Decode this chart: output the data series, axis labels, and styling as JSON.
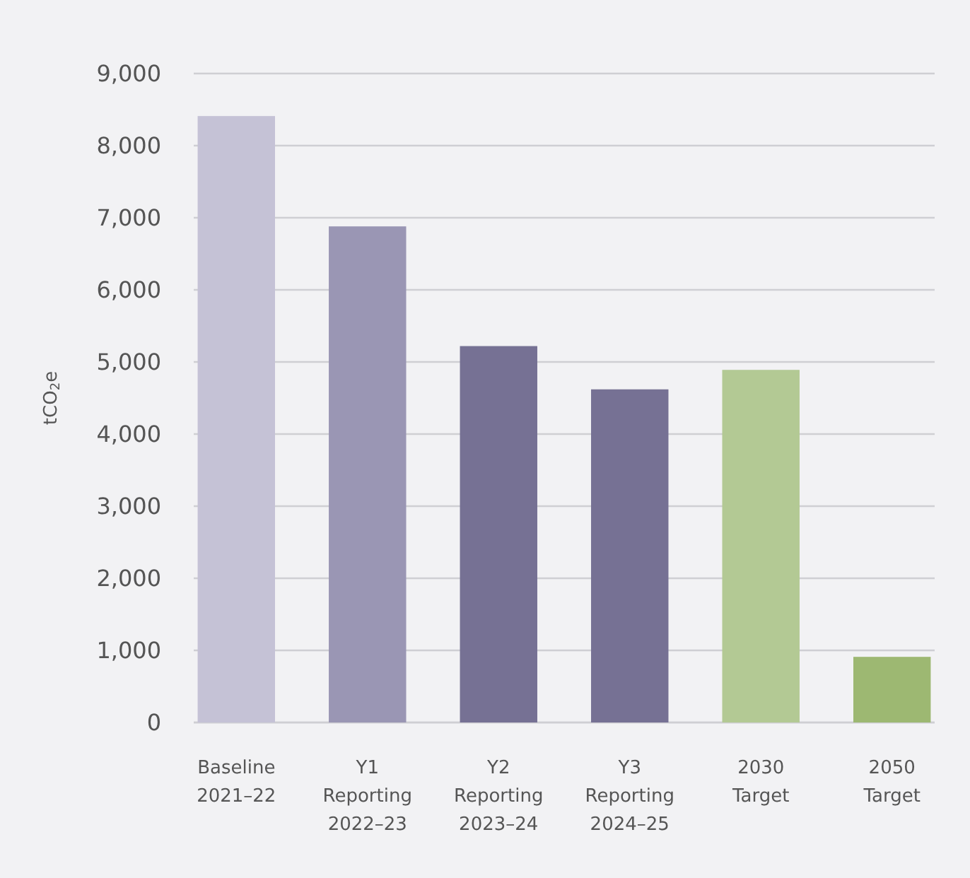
{
  "chart_data": {
    "type": "bar",
    "ylabel": "tCO$_{2}$e",
    "categories": [
      "Baseline\n2021–22",
      "Y1\nReporting\n2022–23",
      "Y2\nReporting\n2023–24",
      "Y3\nReporting\n2024–25",
      "2030\nTarget",
      "2050\nTarget"
    ],
    "values": [
      8410,
      6880,
      5220,
      4620,
      4890,
      910
    ],
    "colors": [
      "#c5c2d6",
      "#9a96b4",
      "#767194",
      "#767194",
      "#b3c994",
      "#9db872"
    ],
    "ylim": [
      0,
      9000
    ],
    "yticks": [
      {
        "value": 0,
        "label": "0"
      },
      {
        "value": 1000,
        "label": "1,000"
      },
      {
        "value": 2000,
        "label": "2,000"
      },
      {
        "value": 3000,
        "label": "3,000"
      },
      {
        "value": 4000,
        "label": "4,000"
      },
      {
        "value": 5000,
        "label": "5,000"
      },
      {
        "value": 6000,
        "label": "6,000"
      },
      {
        "value": 7000,
        "label": "7,000"
      },
      {
        "value": 8000,
        "label": "8,000"
      },
      {
        "value": 9000,
        "label": "9,000"
      }
    ],
    "grid": "y"
  }
}
